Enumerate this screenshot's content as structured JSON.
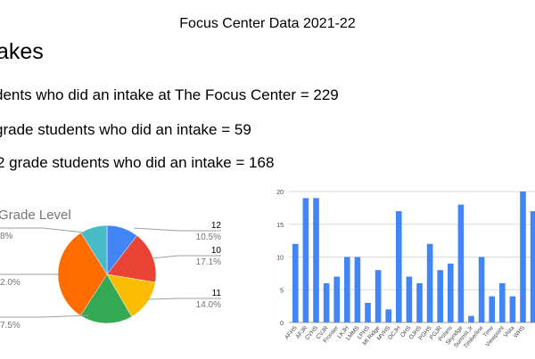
{
  "slide": {
    "title": "Focus Center Data 2021-22",
    "heading": "akes",
    "stats": [
      "dents who did an intake at The Focus Center = 229",
      "grade students who did an intake = 59",
      "2 grade students who did an intake = 168"
    ]
  },
  "chart_data": [
    {
      "type": "pie",
      "title": "Grade Level",
      "slices": [
        {
          "label": "12",
          "percent": 10.5,
          "color": "#4285f4"
        },
        {
          "label": "10",
          "percent": 17.1,
          "color": "#ea4335"
        },
        {
          "label": "11",
          "percent": 14.0,
          "color": "#fbbc04"
        },
        {
          "label": "",
          "percent": 17.5,
          "color": "#34a853"
        },
        {
          "label": "",
          "percent": 32.0,
          "color": "#ff6d01"
        },
        {
          "label": "",
          "percent": 8.9,
          "color": "#46bdc6"
        }
      ],
      "visible_pct_labels": {
        "left_top": "8%",
        "left_mid": "2.0%",
        "left_bottom": "7.5%"
      }
    },
    {
      "type": "bar",
      "color": "#4285f4",
      "categories": [
        "AFHS",
        "AFJR",
        "CVHS",
        "CVJR",
        "Frontier",
        "LKJH",
        "LMMS",
        "LPHS",
        "Mt Ridge",
        "MVHS",
        "OCJH",
        "OHS",
        "OJHS",
        "PGHS",
        "PGJR",
        "Polaris",
        "Skyridge",
        "Summit Jr",
        "Timberline",
        "Time",
        "Viewpoint",
        "Vista",
        "WHS",
        ""
      ],
      "values": [
        12,
        19,
        19,
        6,
        7,
        10,
        10,
        3,
        8,
        2,
        17,
        7,
        6,
        12,
        8,
        9,
        18,
        1,
        10,
        4,
        6,
        4,
        20,
        17
      ],
      "ylim": [
        0,
        20
      ],
      "yticks": [
        0,
        5,
        10,
        15,
        20
      ],
      "grid": true
    }
  ]
}
